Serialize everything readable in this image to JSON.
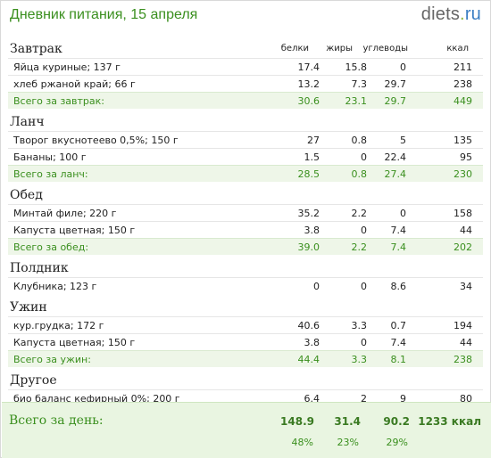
{
  "header": {
    "title": "Дневник питания, 15 апреля",
    "brand_name": "diets",
    "brand_dot": ".",
    "brand_tld": "ru"
  },
  "columns": {
    "protein": "белки",
    "fat": "жиры",
    "carbs": "углеводы",
    "kcal": "ккал"
  },
  "meals": [
    {
      "title": "Завтрак",
      "items": [
        {
          "name": "Яйца куриные; 137 г",
          "protein": "17.4",
          "fat": "15.8",
          "carbs": "0",
          "kcal": "211"
        },
        {
          "name": "хлеб ржаной край; 66 г",
          "protein": "13.2",
          "fat": "7.3",
          "carbs": "29.7",
          "kcal": "238"
        }
      ],
      "total": {
        "label": "Всего за завтрак:",
        "protein": "30.6",
        "fat": "23.1",
        "carbs": "29.7",
        "kcal": "449"
      }
    },
    {
      "title": "Ланч",
      "items": [
        {
          "name": "Творог вкуснотеево 0,5%; 150 г",
          "protein": "27",
          "fat": "0.8",
          "carbs": "5",
          "kcal": "135"
        },
        {
          "name": "Бананы; 100 г",
          "protein": "1.5",
          "fat": "0",
          "carbs": "22.4",
          "kcal": "95"
        }
      ],
      "total": {
        "label": "Всего за ланч:",
        "protein": "28.5",
        "fat": "0.8",
        "carbs": "27.4",
        "kcal": "230"
      }
    },
    {
      "title": "Обед",
      "items": [
        {
          "name": "Минтай филе; 220 г",
          "protein": "35.2",
          "fat": "2.2",
          "carbs": "0",
          "kcal": "158"
        },
        {
          "name": "Капуста цветная; 150 г",
          "protein": "3.8",
          "fat": "0",
          "carbs": "7.4",
          "kcal": "44"
        }
      ],
      "total": {
        "label": "Всего за обед:",
        "protein": "39.0",
        "fat": "2.2",
        "carbs": "7.4",
        "kcal": "202"
      }
    },
    {
      "title": "Полдник",
      "items": [
        {
          "name": "Клубника; 123 г",
          "protein": "0",
          "fat": "0",
          "carbs": "8.6",
          "kcal": "34"
        }
      ]
    },
    {
      "title": "Ужин",
      "items": [
        {
          "name": "кур.грудка; 172 г",
          "protein": "40.6",
          "fat": "3.3",
          "carbs": "0.7",
          "kcal": "194"
        },
        {
          "name": "Капуста цветная; 150 г",
          "protein": "3.8",
          "fat": "0",
          "carbs": "7.4",
          "kcal": "44"
        }
      ],
      "total": {
        "label": "Всего за ужин:",
        "protein": "44.4",
        "fat": "3.3",
        "carbs": "8.1",
        "kcal": "238"
      }
    },
    {
      "title": "Другое",
      "items": [
        {
          "name": "био баланс кефирный 0%; 200 г",
          "protein": "6.4",
          "fat": "2",
          "carbs": "9",
          "kcal": "80"
        }
      ]
    }
  ],
  "day_total": {
    "label": "Всего за день:",
    "protein": "148.9",
    "fat": "31.4",
    "carbs": "90.2",
    "kcal": "1233 ккал",
    "protein_pct": "48%",
    "fat_pct": "23%",
    "carbs_pct": "29%"
  }
}
